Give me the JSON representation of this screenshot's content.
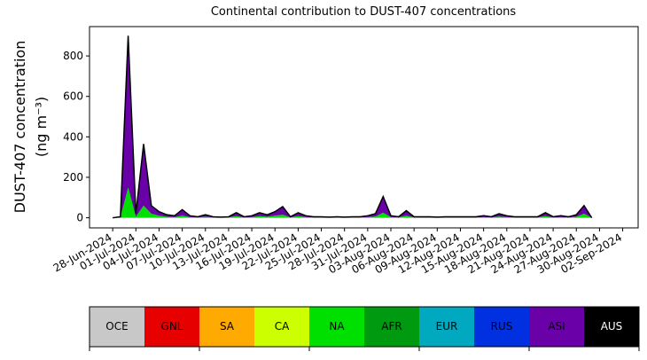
{
  "chart_data": {
    "type": "stacked-area",
    "title": "Continental contribution to DUST-407 concentrations",
    "ylabel": [
      "DUST-407 concentration",
      "(ng m⁻³)"
    ],
    "x": [
      "28-Jun-2024",
      "29-Jun-2024",
      "30-Jun-2024",
      "01-Jul-2024",
      "02-Jul-2024",
      "03-Jul-2024",
      "04-Jul-2024",
      "05-Jul-2024",
      "06-Jul-2024",
      "07-Jul-2024",
      "08-Jul-2024",
      "09-Jul-2024",
      "10-Jul-2024",
      "11-Jul-2024",
      "12-Jul-2024",
      "13-Jul-2024",
      "14-Jul-2024",
      "15-Jul-2024",
      "16-Jul-2024",
      "17-Jul-2024",
      "18-Jul-2024",
      "19-Jul-2024",
      "20-Jul-2024",
      "21-Jul-2024",
      "22-Jul-2024",
      "23-Jul-2024",
      "24-Jul-2024",
      "25-Jul-2024",
      "26-Jul-2024",
      "27-Jul-2024",
      "28-Jul-2024",
      "29-Jul-2024",
      "30-Jul-2024",
      "31-Jul-2024",
      "01-Aug-2024",
      "02-Aug-2024",
      "03-Aug-2024",
      "04-Aug-2024",
      "05-Aug-2024",
      "06-Aug-2024",
      "07-Aug-2024",
      "08-Aug-2024",
      "09-Aug-2024",
      "10-Aug-2024",
      "11-Aug-2024",
      "12-Aug-2024",
      "13-Aug-2024",
      "14-Aug-2024",
      "15-Aug-2024",
      "16-Aug-2024",
      "17-Aug-2024",
      "18-Aug-2024",
      "19-Aug-2024",
      "20-Aug-2024",
      "21-Aug-2024",
      "22-Aug-2024",
      "23-Aug-2024",
      "24-Aug-2024",
      "25-Aug-2024",
      "26-Aug-2024",
      "27-Aug-2024",
      "28-Aug-2024",
      "29-Aug-2024"
    ],
    "xlim": [
      "25-Jun-2024",
      "04-Sep-2024"
    ],
    "xticks": [
      "28-Jun-2024",
      "01-Jul-2024",
      "04-Jul-2024",
      "07-Jul-2024",
      "10-Jul-2024",
      "13-Jul-2024",
      "16-Jul-2024",
      "19-Jul-2024",
      "22-Jul-2024",
      "25-Jul-2024",
      "28-Jul-2024",
      "31-Jul-2024",
      "03-Aug-2024",
      "06-Aug-2024",
      "09-Aug-2024",
      "12-Aug-2024",
      "15-Aug-2024",
      "18-Aug-2024",
      "21-Aug-2024",
      "24-Aug-2024",
      "27-Aug-2024",
      "30-Aug-2024",
      "02-Sep-2024"
    ],
    "ylim": [
      -50,
      945
    ],
    "yticks": [
      0,
      200,
      400,
      600,
      800
    ],
    "series": [
      {
        "name": "OCE",
        "color": "#c8c8c8",
        "values": [
          0,
          0,
          0,
          0,
          0,
          0,
          0,
          0,
          0,
          0,
          0,
          0,
          0,
          0,
          0,
          0,
          0,
          0,
          0,
          0,
          0,
          0,
          0,
          0,
          0,
          0,
          0,
          0,
          0,
          0,
          0,
          0,
          0,
          0,
          0,
          0,
          0,
          0,
          0,
          0,
          0,
          0,
          0,
          0,
          0,
          0,
          0,
          0,
          0,
          0,
          0,
          0,
          0,
          0,
          0,
          0,
          0,
          0,
          0,
          0,
          0,
          0,
          0
        ]
      },
      {
        "name": "GNL",
        "color": "#e60000",
        "values": [
          0,
          0,
          0,
          0,
          0,
          0,
          0,
          0,
          0,
          0,
          0,
          0,
          0,
          0,
          0,
          0,
          0,
          0,
          0,
          0,
          0,
          0,
          0,
          0,
          0,
          0,
          0,
          0,
          0,
          0,
          0,
          0,
          0,
          0,
          0,
          0,
          0,
          0,
          0,
          0,
          0,
          0,
          0,
          0,
          0,
          0,
          0,
          0,
          0,
          0,
          0,
          0,
          0,
          0,
          0,
          0,
          0,
          0,
          0,
          0,
          0,
          0,
          0
        ]
      },
      {
        "name": "SA",
        "color": "#ffaa00",
        "values": [
          0,
          0,
          0,
          0,
          0,
          0,
          0,
          0,
          0,
          0,
          0,
          0,
          0,
          0,
          0,
          0,
          0,
          0,
          0,
          0,
          0,
          0,
          0,
          0,
          0,
          0,
          0,
          0,
          0,
          0,
          0,
          0,
          0,
          0,
          0,
          0,
          0,
          0,
          0,
          0,
          0,
          0,
          0,
          0,
          0,
          0,
          0,
          0,
          0,
          0,
          0,
          0,
          0,
          0,
          0,
          0,
          0,
          0,
          0,
          0,
          0,
          0,
          0
        ]
      },
      {
        "name": "CA",
        "color": "#ccff00",
        "values": [
          0,
          0,
          0,
          0,
          0,
          0,
          0,
          0,
          0,
          0,
          0,
          0,
          0,
          0,
          0,
          0,
          0,
          0,
          0,
          0,
          0,
          0,
          0,
          0,
          0,
          0,
          0,
          0,
          0,
          0,
          0,
          0,
          0,
          0,
          0,
          0,
          0,
          0,
          0,
          0,
          0,
          0,
          0,
          0,
          0,
          0,
          0,
          0,
          0,
          0,
          0,
          0,
          0,
          0,
          0,
          0,
          0,
          0,
          0,
          0,
          0,
          0,
          0
        ]
      },
      {
        "name": "NA",
        "color": "#00e000",
        "values": [
          0,
          2,
          150,
          5,
          60,
          20,
          10,
          5,
          3,
          10,
          3,
          2,
          5,
          2,
          1,
          2,
          8,
          2,
          3,
          8,
          5,
          10,
          15,
          2,
          8,
          3,
          2,
          2,
          1,
          2,
          1,
          2,
          2,
          3,
          6,
          25,
          3,
          2,
          10,
          2,
          2,
          2,
          1,
          2,
          2,
          2,
          2,
          2,
          3,
          2,
          6,
          3,
          2,
          2,
          2,
          2,
          8,
          2,
          3,
          2,
          5,
          20,
          0
        ]
      },
      {
        "name": "AFR",
        "color": "#009a10",
        "values": [
          0,
          0,
          0,
          0,
          0,
          0,
          0,
          0,
          0,
          0,
          0,
          0,
          0,
          0,
          0,
          0,
          0,
          0,
          0,
          0,
          0,
          0,
          0,
          0,
          0,
          0,
          0,
          0,
          0,
          0,
          0,
          0,
          0,
          0,
          0,
          0,
          0,
          0,
          0,
          0,
          0,
          0,
          0,
          0,
          0,
          0,
          0,
          0,
          0,
          0,
          0,
          0,
          0,
          0,
          0,
          0,
          0,
          0,
          0,
          0,
          0,
          0,
          0
        ]
      },
      {
        "name": "EUR",
        "color": "#00a8c0",
        "values": [
          0,
          0,
          0,
          0,
          0,
          0,
          0,
          0,
          0,
          0,
          0,
          0,
          0,
          0,
          0,
          0,
          0,
          0,
          0,
          0,
          0,
          0,
          0,
          0,
          0,
          0,
          0,
          0,
          0,
          0,
          0,
          0,
          0,
          0,
          0,
          0,
          0,
          0,
          0,
          0,
          0,
          0,
          0,
          0,
          0,
          0,
          0,
          0,
          0,
          0,
          0,
          0,
          0,
          0,
          0,
          0,
          0,
          0,
          0,
          0,
          0,
          0,
          0
        ]
      },
      {
        "name": "RUS",
        "color": "#0030e0",
        "values": [
          0,
          0,
          0,
          0,
          0,
          0,
          0,
          0,
          0,
          0,
          0,
          0,
          0,
          0,
          0,
          0,
          0,
          0,
          0,
          0,
          0,
          0,
          0,
          0,
          0,
          0,
          0,
          0,
          0,
          0,
          0,
          0,
          0,
          0,
          0,
          0,
          0,
          0,
          0,
          0,
          0,
          0,
          0,
          0,
          0,
          0,
          0,
          0,
          0,
          0,
          0,
          0,
          0,
          0,
          0,
          0,
          0,
          0,
          0,
          0,
          0,
          0,
          0
        ]
      },
      {
        "name": "ASI",
        "color": "#6a00a8",
        "values": [
          0,
          3,
          750,
          15,
          305,
          40,
          20,
          10,
          7,
          30,
          7,
          3,
          10,
          3,
          2,
          3,
          17,
          3,
          7,
          17,
          10,
          20,
          40,
          3,
          17,
          7,
          3,
          3,
          2,
          3,
          2,
          3,
          3,
          7,
          14,
          80,
          7,
          3,
          25,
          3,
          3,
          3,
          2,
          3,
          3,
          3,
          3,
          3,
          7,
          3,
          14,
          7,
          3,
          3,
          3,
          3,
          17,
          3,
          7,
          3,
          10,
          40,
          0
        ]
      },
      {
        "name": "AUS",
        "color": "#000000",
        "values": [
          0,
          0,
          0,
          0,
          0,
          0,
          0,
          0,
          0,
          0,
          0,
          0,
          0,
          0,
          0,
          0,
          0,
          0,
          0,
          0,
          0,
          0,
          0,
          0,
          0,
          0,
          0,
          0,
          0,
          0,
          0,
          0,
          0,
          0,
          0,
          0,
          0,
          0,
          0,
          0,
          0,
          0,
          0,
          0,
          0,
          0,
          0,
          0,
          0,
          0,
          0,
          0,
          0,
          0,
          0,
          0,
          0,
          0,
          0,
          0,
          0,
          0,
          0
        ]
      }
    ]
  }
}
